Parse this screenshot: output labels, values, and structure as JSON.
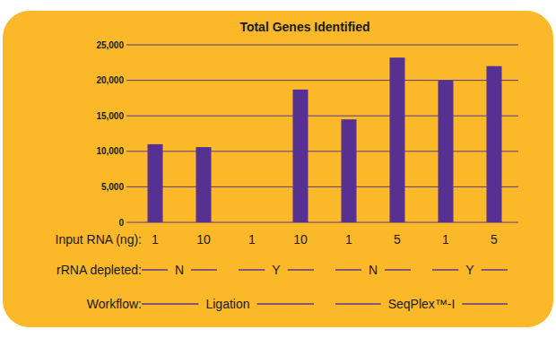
{
  "chart_data": {
    "type": "bar",
    "title": "Total Genes Identified",
    "x_label": "Input RNA (ng):",
    "categories": [
      "1",
      "10",
      "1",
      "10",
      "1",
      "5",
      "1",
      "5"
    ],
    "values": [
      11000,
      10600,
      null,
      18700,
      14500,
      23200,
      20000,
      22000
    ],
    "category_levels": [
      {
        "label": "rRNA depleted:",
        "groups": [
          "N",
          "Y",
          "N",
          "Y"
        ],
        "sizes": [
          2,
          2,
          2,
          2
        ]
      },
      {
        "label": "Workflow:",
        "groups": [
          "Ligation",
          "SeqPlex™-I"
        ],
        "sizes": [
          4,
          4
        ]
      }
    ],
    "color": "#573192",
    "ylim": [
      0,
      25000
    ],
    "yticks": [
      0,
      {
        "value": 5000,
        "label": "5,000"
      },
      {
        "value": 10000,
        "label": "10,000"
      },
      {
        "value": 15000,
        "label": "15,000"
      },
      {
        "value": 20000,
        "label": "20,000"
      },
      {
        "value": 25000,
        "label": "25,000"
      }
    ],
    "grid": true
  }
}
